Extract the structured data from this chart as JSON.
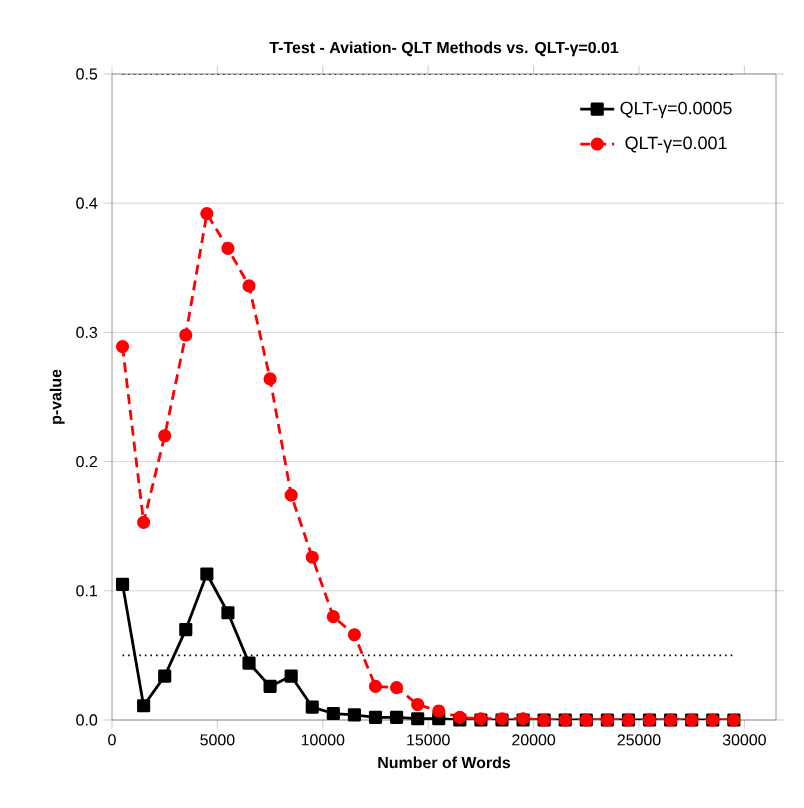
{
  "chart_data": {
    "type": "line",
    "title": "T-Test - Aviation- QLT Methods vs. QLT-γ=0.01",
    "xlabel": "Number of Words",
    "ylabel": "p-value",
    "x": [
      500,
      1500,
      2500,
      3500,
      4500,
      5500,
      6500,
      7500,
      8500,
      9500,
      10500,
      11500,
      12500,
      13500,
      14500,
      15500,
      16500,
      17500,
      18500,
      19500,
      20500,
      21500,
      22500,
      23500,
      24500,
      25500,
      26500,
      27500,
      28500,
      29500
    ],
    "series": [
      {
        "name": "QLT-γ=0.0005",
        "color": "#000000",
        "marker": "square",
        "line_style": "solid",
        "values": [
          0.105,
          0.011,
          0.034,
          0.07,
          0.113,
          0.083,
          0.044,
          0.026,
          0.034,
          0.01,
          0.005,
          0.004,
          0.002,
          0.002,
          0.001,
          0.001,
          0,
          0,
          0,
          0,
          0,
          0,
          0,
          0,
          0,
          0,
          0,
          0,
          0,
          0
        ]
      },
      {
        "name": "QLT-γ=0.001",
        "color": "#ff0000",
        "marker": "circle",
        "line_style": "dashed",
        "values": [
          0.289,
          0.153,
          0.22,
          0.298,
          0.392,
          0.365,
          0.336,
          0.264,
          0.174,
          0.126,
          0.08,
          0.066,
          0.026,
          0.025,
          0.012,
          0.007,
          0.002,
          0.001,
          0.001,
          0.001,
          0,
          0,
          0,
          0,
          0,
          0,
          0,
          0,
          0,
          0
        ]
      }
    ],
    "xlim": [
      0,
      31500
    ],
    "ylim": [
      0,
      0.5
    ],
    "xticks": [
      0,
      5000,
      10000,
      15000,
      20000,
      25000,
      30000
    ],
    "yticks": [
      {
        "value": 0,
        "label": "0.0"
      },
      0.1,
      0.2,
      0.3,
      0.4,
      0.5
    ],
    "ref_lines": [
      {
        "axis": "y",
        "value": 0.5,
        "line_style": "dotted"
      },
      {
        "axis": "y",
        "value": 0.05,
        "line_style": "dotted"
      }
    ],
    "grid": "y",
    "legend": "top right"
  }
}
